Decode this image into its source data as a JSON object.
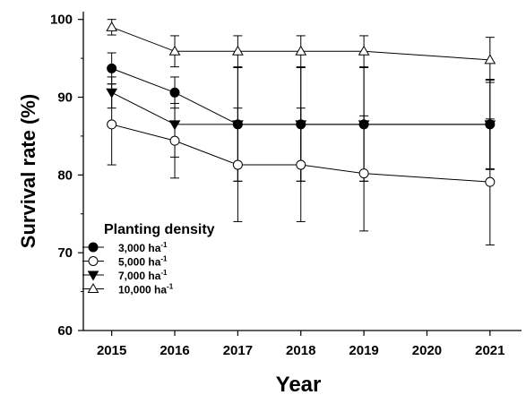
{
  "chart_data": {
    "type": "line",
    "xlabel": "Year",
    "ylabel": "Survival rate (%)",
    "x": [
      2015,
      2016,
      2017,
      2018,
      2019,
      2021
    ],
    "x_ticks": [
      "2015",
      "2016",
      "2017",
      "2018",
      "2019",
      "2020",
      "2021"
    ],
    "x_range": [
      2014.55,
      2021.5
    ],
    "ylim": [
      60,
      101
    ],
    "y_ticks": [
      "60",
      "70",
      "80",
      "90",
      "100"
    ],
    "grid": false,
    "legend": {
      "title": "Planting density",
      "placement": "left"
    },
    "series": [
      {
        "name": "3,000 ha",
        "name_sup": "-1",
        "marker": "circle-filled",
        "values": [
          93.7,
          90.6,
          86.5,
          86.5,
          86.5,
          86.5
        ],
        "error": [
          2.0,
          2.0,
          7.3,
          7.3,
          7.3,
          5.8
        ]
      },
      {
        "name": "5,000 ha",
        "name_sup": "-1",
        "marker": "circle-open",
        "values": [
          86.5,
          84.4,
          81.3,
          81.3,
          80.2,
          79.1
        ],
        "error": [
          5.2,
          4.8,
          7.3,
          7.3,
          7.4,
          8.1
        ]
      },
      {
        "name": "7,000 ha",
        "name_sup": "-1",
        "marker": "triangle-down-filled",
        "values": [
          90.6,
          86.5,
          86.5,
          86.5,
          86.5,
          86.5
        ],
        "error": [
          2.0,
          4.2,
          7.3,
          7.3,
          7.3,
          5.7
        ]
      },
      {
        "name": "10,000 ha",
        "name_sup": "-1",
        "marker": "triangle-up-open",
        "values": [
          99.0,
          95.9,
          95.9,
          95.9,
          95.9,
          94.8
        ],
        "error": [
          1.0,
          2.0,
          2.0,
          2.0,
          2.0,
          2.9
        ]
      }
    ]
  }
}
